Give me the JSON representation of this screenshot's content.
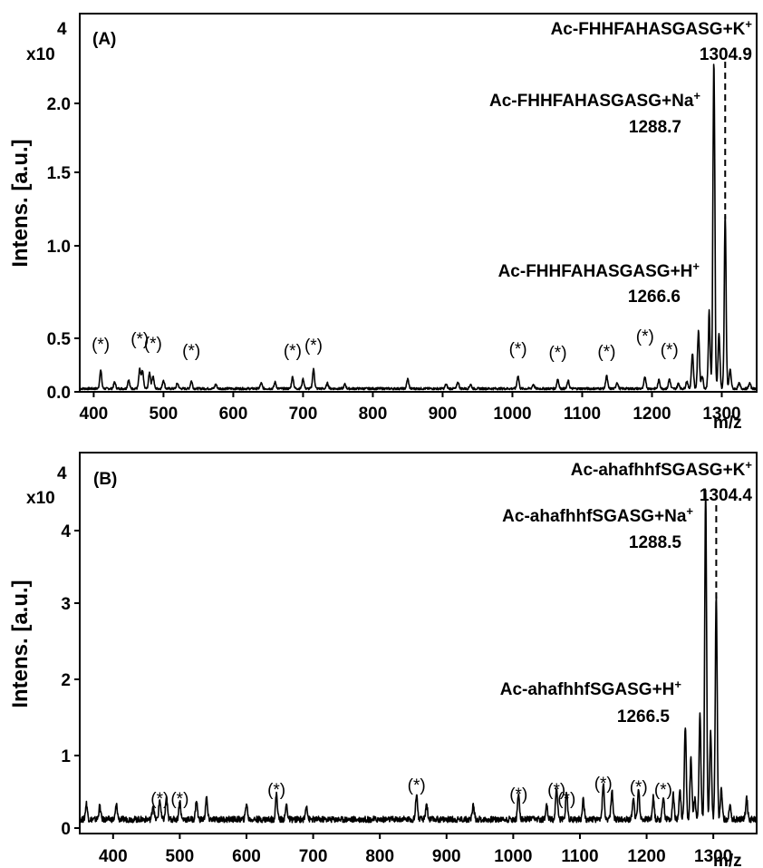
{
  "chart_data": [
    {
      "type": "line",
      "panel_label": "(A)",
      "ylabel": "Intens. [a.u.]",
      "xlabel": "m/z",
      "scale_label": "x10",
      "scale_exponent": "4",
      "xlim": [
        380,
        1350
      ],
      "ylim": [
        0,
        2.4
      ],
      "xticks": [
        400,
        500,
        600,
        700,
        800,
        900,
        1000,
        1100,
        1200,
        1300
      ],
      "yticks": [
        0.0,
        0.5,
        1.0,
        1.5,
        2.0
      ],
      "ytick_labels": [
        "0.0",
        "0.5",
        "1.0",
        "1.5",
        "2.0"
      ],
      "baseline": 0.03,
      "peaks": [
        {
          "mz": 410,
          "int": 0.17
        },
        {
          "mz": 430,
          "int": 0.06
        },
        {
          "mz": 450,
          "int": 0.08
        },
        {
          "mz": 466,
          "int": 0.18
        },
        {
          "mz": 470,
          "int": 0.16
        },
        {
          "mz": 480,
          "int": 0.15
        },
        {
          "mz": 485,
          "int": 0.12
        },
        {
          "mz": 500,
          "int": 0.08
        },
        {
          "mz": 520,
          "int": 0.05
        },
        {
          "mz": 540,
          "int": 0.07
        },
        {
          "mz": 575,
          "int": 0.04
        },
        {
          "mz": 640,
          "int": 0.05
        },
        {
          "mz": 660,
          "int": 0.06
        },
        {
          "mz": 685,
          "int": 0.11
        },
        {
          "mz": 700,
          "int": 0.09
        },
        {
          "mz": 715,
          "int": 0.18
        },
        {
          "mz": 735,
          "int": 0.05
        },
        {
          "mz": 760,
          "int": 0.04
        },
        {
          "mz": 850,
          "int": 0.09
        },
        {
          "mz": 905,
          "int": 0.04
        },
        {
          "mz": 922,
          "int": 0.06
        },
        {
          "mz": 940,
          "int": 0.04
        },
        {
          "mz": 1008,
          "int": 0.12
        },
        {
          "mz": 1030,
          "int": 0.04
        },
        {
          "mz": 1065,
          "int": 0.09
        },
        {
          "mz": 1080,
          "int": 0.07
        },
        {
          "mz": 1135,
          "int": 0.12
        },
        {
          "mz": 1150,
          "int": 0.06
        },
        {
          "mz": 1190,
          "int": 0.11
        },
        {
          "mz": 1210,
          "int": 0.08
        },
        {
          "mz": 1225,
          "int": 0.09
        },
        {
          "mz": 1238,
          "int": 0.05
        },
        {
          "mz": 1250,
          "int": 0.07
        },
        {
          "mz": 1258,
          "int": 0.33
        },
        {
          "mz": 1266.6,
          "int": 0.52
        },
        {
          "mz": 1272,
          "int": 0.12
        },
        {
          "mz": 1282,
          "int": 0.62
        },
        {
          "mz": 1288.7,
          "int": 2.27
        },
        {
          "mz": 1296,
          "int": 0.5
        },
        {
          "mz": 1304.9,
          "int": 1.17
        },
        {
          "mz": 1312,
          "int": 0.18
        },
        {
          "mz": 1325,
          "int": 0.05
        },
        {
          "mz": 1340,
          "int": 0.05
        }
      ],
      "peak_labels": [
        {
          "text": "Ac-FHHFAHASGASG+K",
          "ion": "+",
          "value": "1304.9"
        },
        {
          "text": "Ac-FHHFAHASGASG+Na",
          "ion": "+",
          "value": "1288.7"
        },
        {
          "text": "Ac-FHHFAHASGASG+H",
          "ion": "+",
          "value": "1266.6"
        }
      ],
      "star_label": "(*)",
      "stars": [
        410,
        466,
        485,
        540,
        685,
        715,
        1008,
        1065,
        1135,
        1190,
        1225
      ]
    },
    {
      "type": "line",
      "panel_label": "(B)",
      "ylabel": "Intens. [a.u.]",
      "xlabel": "m/z",
      "scale_label": "x10",
      "scale_exponent": "4",
      "xlim": [
        350,
        1365
      ],
      "ylim": [
        0,
        4.6
      ],
      "xticks": [
        400,
        500,
        600,
        700,
        800,
        900,
        1000,
        1100,
        1200,
        1300
      ],
      "yticks": [
        0,
        1,
        2,
        3,
        4
      ],
      "ytick_labels": [
        "0",
        "1",
        "2",
        "3",
        "4"
      ],
      "baseline": 0.12,
      "peaks": [
        {
          "mz": 360,
          "int": 0.22
        },
        {
          "mz": 380,
          "int": 0.18
        },
        {
          "mz": 405,
          "int": 0.2
        },
        {
          "mz": 460,
          "int": 0.2
        },
        {
          "mz": 470,
          "int": 0.27
        },
        {
          "mz": 480,
          "int": 0.3
        },
        {
          "mz": 500,
          "int": 0.25
        },
        {
          "mz": 525,
          "int": 0.26
        },
        {
          "mz": 540,
          "int": 0.3
        },
        {
          "mz": 600,
          "int": 0.22
        },
        {
          "mz": 645,
          "int": 0.35
        },
        {
          "mz": 660,
          "int": 0.2
        },
        {
          "mz": 690,
          "int": 0.2
        },
        {
          "mz": 855,
          "int": 0.35
        },
        {
          "mz": 870,
          "int": 0.22
        },
        {
          "mz": 940,
          "int": 0.2
        },
        {
          "mz": 1008,
          "int": 0.35
        },
        {
          "mz": 1050,
          "int": 0.22
        },
        {
          "mz": 1065,
          "int": 0.45
        },
        {
          "mz": 1080,
          "int": 0.38
        },
        {
          "mz": 1105,
          "int": 0.28
        },
        {
          "mz": 1135,
          "int": 0.5
        },
        {
          "mz": 1148,
          "int": 0.4
        },
        {
          "mz": 1180,
          "int": 0.3
        },
        {
          "mz": 1188,
          "int": 0.42
        },
        {
          "mz": 1210,
          "int": 0.3
        },
        {
          "mz": 1225,
          "int": 0.32
        },
        {
          "mz": 1240,
          "int": 0.35
        },
        {
          "mz": 1250,
          "int": 0.4
        },
        {
          "mz": 1258,
          "int": 1.25
        },
        {
          "mz": 1266.5,
          "int": 0.85
        },
        {
          "mz": 1272,
          "int": 0.3
        },
        {
          "mz": 1280,
          "int": 1.4
        },
        {
          "mz": 1288.5,
          "int": 4.42
        },
        {
          "mz": 1296,
          "int": 1.2
        },
        {
          "mz": 1304.4,
          "int": 3.0
        },
        {
          "mz": 1312,
          "int": 0.4
        },
        {
          "mz": 1325,
          "int": 0.22
        },
        {
          "mz": 1350,
          "int": 0.3
        }
      ],
      "peak_labels": [
        {
          "text": "Ac-ahafhhfSGASG+K",
          "ion": "+",
          "value": "1304.4"
        },
        {
          "text": "Ac-ahafhhfSGASG+Na",
          "ion": "+",
          "value": "1288.5"
        },
        {
          "text": "Ac-ahafhhfSGASG+H",
          "ion": "+",
          "value": "1266.5"
        }
      ],
      "star_label": "(*)",
      "stars": [
        470,
        500,
        645,
        855,
        1008,
        1065,
        1080,
        1135,
        1188,
        1225
      ]
    }
  ]
}
